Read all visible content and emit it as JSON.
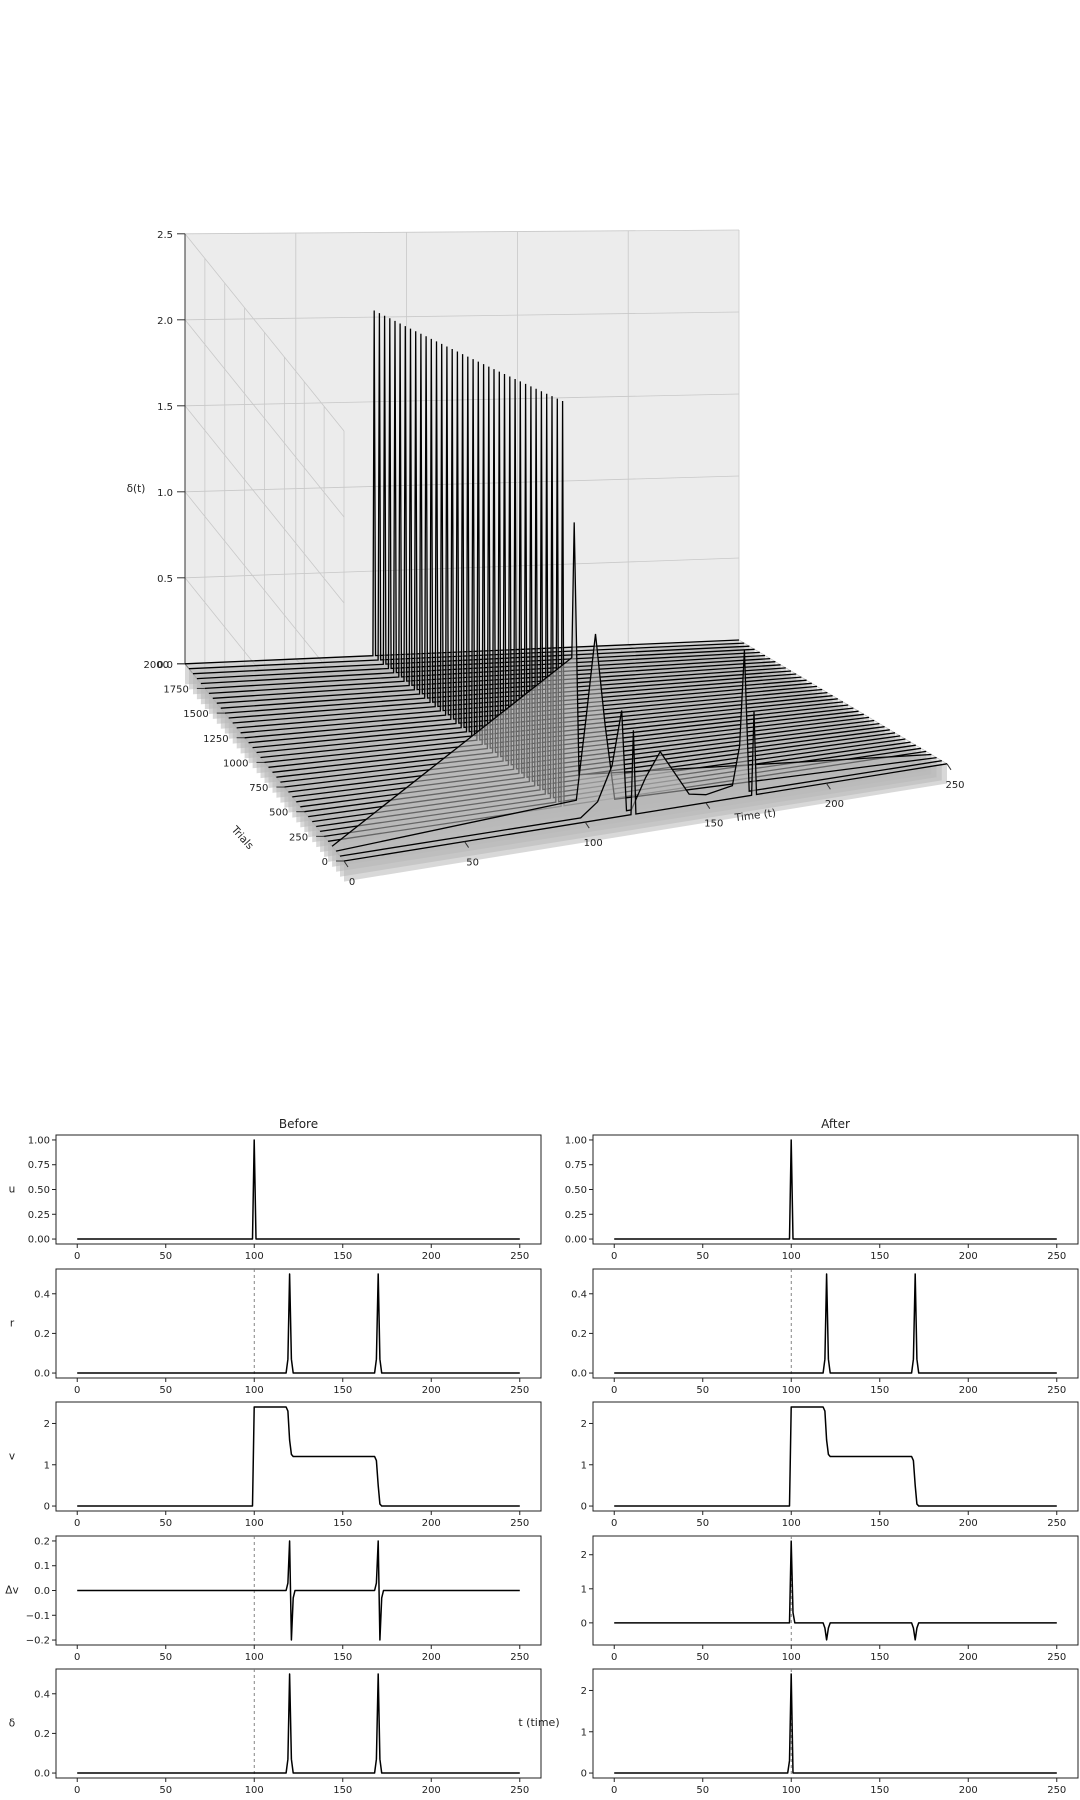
{
  "chart_data": [
    {
      "type": "line",
      "subtype": "3d-waterfall",
      "title": "",
      "xlabel": "Time (t)",
      "ylabel": "Trials",
      "zlabel": "δ(t)",
      "xlim": [
        0,
        250
      ],
      "ylim": [
        0,
        2000
      ],
      "zlim": [
        0,
        2.5
      ],
      "xticks": [
        "0",
        "50",
        "100",
        "150",
        "200",
        "250"
      ],
      "yticks": [
        "0",
        "250",
        "500",
        "750",
        "1000",
        "1250",
        "1500",
        "1750",
        "2000"
      ],
      "zticks": [
        "0.0",
        "0.5",
        "1.0",
        "1.5",
        "2.0",
        "2.5"
      ],
      "grid": true,
      "trial_start": 0,
      "trial_step": 50,
      "trial_count": 41,
      "peak_start_time": 98,
      "peak_start_value": 2.4,
      "early_trials": [
        {
          "trial": 0,
          "points": [
            [
              0,
              0
            ],
            [
              119,
              0
            ],
            [
              120,
              0.5
            ],
            [
              121,
              0
            ],
            [
              169,
              0
            ],
            [
              170,
              0.5
            ],
            [
              171,
              0
            ],
            [
              250,
              0
            ]
          ]
        },
        {
          "trial": 50,
          "points": [
            [
              0,
              0
            ],
            [
              100,
              0
            ],
            [
              107,
              0.08
            ],
            [
              113,
              0.28
            ],
            [
              117,
              0.6
            ],
            [
              119,
              0
            ],
            [
              121,
              0
            ],
            [
              127,
              0.18
            ],
            [
              133,
              0.32
            ],
            [
              139,
              0.18
            ],
            [
              145,
              0.04
            ],
            [
              152,
              0.02
            ],
            [
              163,
              0.05
            ],
            [
              166,
              0.28
            ],
            [
              168,
              0.85
            ],
            [
              170,
              0
            ],
            [
              250,
              0
            ]
          ]
        },
        {
          "trial": 100,
          "points": [
            [
              0,
              0
            ],
            [
              100,
              0.08
            ],
            [
              104,
              0.55
            ],
            [
              108,
              1.05
            ],
            [
              112,
              0.5
            ],
            [
              116,
              0.05
            ],
            [
              250,
              0
            ]
          ]
        },
        {
          "trial": 150,
          "points": [
            [
              0,
              0
            ],
            [
              100,
              0.9
            ],
            [
              101,
              1.7
            ],
            [
              103,
              0.2
            ],
            [
              250,
              0
            ]
          ]
        }
      ]
    },
    {
      "type": "line",
      "panel": "Before — u",
      "title": "Before",
      "ylabel": "u",
      "x": [
        0,
        99,
        100,
        101,
        250
      ],
      "values": [
        0,
        0,
        1,
        0,
        0
      ],
      "xlim": [
        -12,
        262
      ],
      "ylim": [
        -0.05,
        1.05
      ],
      "xticks": [
        "0",
        "50",
        "100",
        "150",
        "200",
        "250"
      ],
      "yticks": [
        "0.00",
        "0.25",
        "0.50",
        "0.75",
        "1.00"
      ],
      "vline": null
    },
    {
      "type": "line",
      "panel": "Before — r",
      "ylabel": "r",
      "x": [
        0,
        118,
        119,
        120,
        121,
        122,
        168,
        169,
        170,
        171,
        172,
        250
      ],
      "values": [
        0,
        0,
        0.07,
        0.5,
        0.07,
        0,
        0,
        0.07,
        0.5,
        0.07,
        0,
        0
      ],
      "xlim": [
        -12,
        262
      ],
      "ylim": [
        -0.025,
        0.525
      ],
      "xticks": [
        "0",
        "50",
        "100",
        "150",
        "200",
        "250"
      ],
      "yticks": [
        "0.0",
        "0.2",
        "0.4"
      ],
      "vline": 100
    },
    {
      "type": "line",
      "panel": "Before — v",
      "ylabel": "v",
      "x": [
        0,
        99,
        100,
        118,
        119,
        120,
        121,
        122,
        168,
        169,
        170,
        171,
        172,
        250
      ],
      "values": [
        0,
        0,
        2.4,
        2.4,
        2.3,
        1.6,
        1.25,
        1.2,
        1.2,
        1.1,
        0.5,
        0.05,
        0,
        0
      ],
      "xlim": [
        -12,
        262
      ],
      "ylim": [
        -0.12,
        2.52
      ],
      "xticks": [
        "0",
        "50",
        "100",
        "150",
        "200",
        "250"
      ],
      "yticks": [
        "0",
        "1",
        "2"
      ],
      "vline": null
    },
    {
      "type": "line",
      "panel": "Before — Δv",
      "ylabel": "Δv",
      "x": [
        0,
        118,
        119,
        120,
        121,
        122,
        123,
        168,
        169,
        170,
        171,
        172,
        173,
        250
      ],
      "values": [
        0,
        0,
        0.03,
        0.2,
        -0.2,
        -0.03,
        0,
        0,
        0.03,
        0.2,
        -0.2,
        -0.03,
        0,
        0
      ],
      "xlim": [
        -12,
        262
      ],
      "ylim": [
        -0.22,
        0.22
      ],
      "xticks": [
        "0",
        "50",
        "100",
        "150",
        "200",
        "250"
      ],
      "yticks": [
        "−0.2",
        "−0.1",
        "0.0",
        "0.1",
        "0.2"
      ],
      "vline": 100
    },
    {
      "type": "line",
      "panel": "Before — δ",
      "ylabel": "δ",
      "x": [
        0,
        118,
        119,
        120,
        121,
        122,
        168,
        169,
        170,
        171,
        172,
        250
      ],
      "values": [
        0,
        0,
        0.07,
        0.5,
        0.07,
        0,
        0,
        0.07,
        0.5,
        0.07,
        0,
        0
      ],
      "xlim": [
        -12,
        262
      ],
      "ylim": [
        -0.025,
        0.525
      ],
      "xticks": [
        "0",
        "50",
        "100",
        "150",
        "200",
        "250"
      ],
      "yticks": [
        "0.0",
        "0.2",
        "0.4"
      ],
      "vline": 100
    },
    {
      "type": "line",
      "panel": "After — u",
      "title": "After",
      "x": [
        0,
        99,
        100,
        101,
        250
      ],
      "values": [
        0,
        0,
        1,
        0,
        0
      ],
      "xlim": [
        -12,
        262
      ],
      "ylim": [
        -0.05,
        1.05
      ],
      "xticks": [
        "0",
        "50",
        "100",
        "150",
        "200",
        "250"
      ],
      "yticks": [
        "0.00",
        "0.25",
        "0.50",
        "0.75",
        "1.00"
      ],
      "vline": null
    },
    {
      "type": "line",
      "panel": "After — r",
      "x": [
        0,
        118,
        119,
        120,
        121,
        122,
        168,
        169,
        170,
        171,
        172,
        250
      ],
      "values": [
        0,
        0,
        0.07,
        0.5,
        0.07,
        0,
        0,
        0.07,
        0.5,
        0.07,
        0,
        0
      ],
      "xlim": [
        -12,
        262
      ],
      "ylim": [
        -0.025,
        0.525
      ],
      "xticks": [
        "0",
        "50",
        "100",
        "150",
        "200",
        "250"
      ],
      "yticks": [
        "0.0",
        "0.2",
        "0.4"
      ],
      "vline": 100
    },
    {
      "type": "line",
      "panel": "After — v",
      "x": [
        0,
        99,
        100,
        118,
        119,
        120,
        121,
        122,
        168,
        169,
        170,
        171,
        172,
        250
      ],
      "values": [
        0,
        0,
        2.4,
        2.4,
        2.3,
        1.6,
        1.25,
        1.2,
        1.2,
        1.1,
        0.5,
        0.05,
        0,
        0
      ],
      "xlim": [
        -12,
        262
      ],
      "ylim": [
        -0.12,
        2.52
      ],
      "xticks": [
        "0",
        "50",
        "100",
        "150",
        "200",
        "250"
      ],
      "yticks": [
        "0",
        "1",
        "2"
      ],
      "vline": null
    },
    {
      "type": "line",
      "panel": "After — Δv",
      "x": [
        0,
        99,
        100,
        101,
        102,
        118,
        119,
        120,
        121,
        122,
        168,
        169,
        170,
        171,
        172,
        250
      ],
      "values": [
        0,
        0,
        2.4,
        0.3,
        0,
        0,
        -0.15,
        -0.5,
        -0.15,
        0,
        0,
        -0.15,
        -0.5,
        -0.15,
        0,
        0
      ],
      "xlim": [
        -12,
        262
      ],
      "ylim": [
        -0.65,
        2.55
      ],
      "xticks": [
        "0",
        "50",
        "100",
        "150",
        "200",
        "250"
      ],
      "yticks": [
        "0",
        "1",
        "2"
      ],
      "vline": 100
    },
    {
      "type": "line",
      "panel": "After — δ",
      "x": [
        0,
        98,
        99,
        100,
        101,
        250
      ],
      "values": [
        0,
        0,
        0.3,
        2.4,
        0,
        0
      ],
      "xlim": [
        -12,
        262
      ],
      "ylim": [
        -0.12,
        2.52
      ],
      "xticks": [
        "0",
        "50",
        "100",
        "150",
        "200",
        "250"
      ],
      "yticks": [
        "0",
        "1",
        "2"
      ],
      "vline": 100
    }
  ],
  "shared_xlabel": "t (time)"
}
